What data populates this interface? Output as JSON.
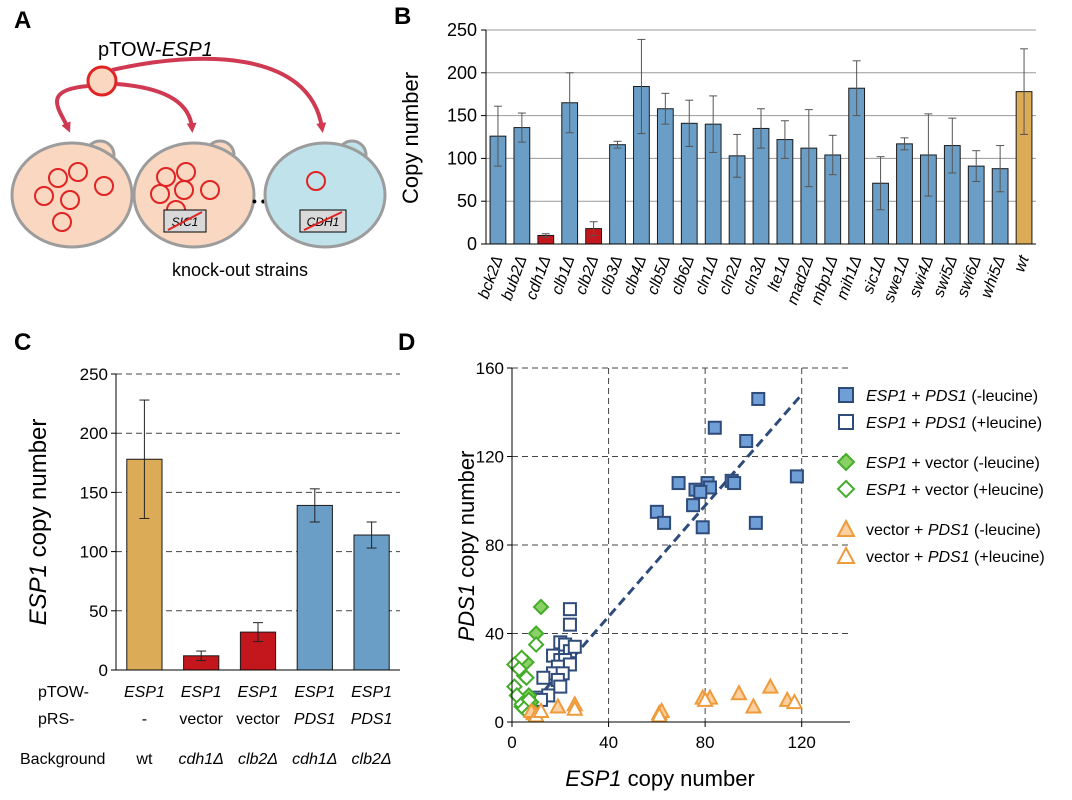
{
  "panels": {
    "A": "A",
    "B": "B",
    "C": "C",
    "D": "D"
  },
  "colors": {
    "blue_bar": "#6b9ec6",
    "red_bar": "#c4171d",
    "gold_bar": "#dbab57",
    "cell_fill": "#fad7c0",
    "cell_blue": "#c0e2ea",
    "circle_red": "#e02424",
    "arrow_red": "#cf3a52",
    "series_blue_dark": "#2e4b7a",
    "series_blue_fill": "#6f9fd6",
    "series_green": "#44ad29",
    "series_green_fill": "#8bd064",
    "series_orange": "#ef9a3b",
    "series_orange_fill": "#fbcf9e",
    "fit_line": "#2e4b7a"
  },
  "panel_a": {
    "plasmid_prefix": "pTOW-",
    "plasmid_gene": "ESP1",
    "sic_label": "SIC1",
    "cdh_label": "CDH1",
    "ellipsis": "• • •",
    "caption": "knock-out strains"
  },
  "chart_data": [
    {
      "id": "B",
      "type": "bar",
      "title": "",
      "xlabel": "",
      "ylabel": "Copy number",
      "ylim": [
        0,
        250
      ],
      "yticks": [
        0,
        50,
        100,
        150,
        200,
        250
      ],
      "grid": true,
      "categories": [
        "bck2Δ",
        "bub2Δ",
        "cdh1Δ",
        "clb1Δ",
        "clb2Δ",
        "clb3Δ",
        "clb4Δ",
        "clb5Δ",
        "clb6Δ",
        "cln1Δ",
        "cln2Δ",
        "cln3Δ",
        "lte1Δ",
        "mad2Δ",
        "mbp1Δ",
        "mih1Δ",
        "sic1Δ",
        "swe1Δ",
        "swi4Δ",
        "swi5Δ",
        "swi6Δ",
        "whi5Δ",
        "wt"
      ],
      "values": [
        126,
        136,
        10,
        165,
        18,
        116,
        184,
        158,
        141,
        140,
        103,
        135,
        122,
        112,
        104,
        182,
        71,
        117,
        104,
        115,
        91,
        88,
        178
      ],
      "error_bars": [
        35,
        17,
        2,
        35,
        8,
        4,
        55,
        18,
        27,
        33,
        25,
        23,
        22,
        45,
        23,
        32,
        31,
        7,
        48,
        32,
        18,
        27,
        50
      ],
      "bar_colors": [
        "blue",
        "blue",
        "red",
        "blue",
        "red",
        "blue",
        "blue",
        "blue",
        "blue",
        "blue",
        "blue",
        "blue",
        "blue",
        "blue",
        "blue",
        "blue",
        "blue",
        "blue",
        "blue",
        "blue",
        "blue",
        "blue",
        "gold"
      ]
    },
    {
      "id": "C",
      "type": "bar",
      "title": "",
      "ylabel_gene": "ESP1",
      "ylabel_suffix": " copy number",
      "ylim": [
        0,
        250
      ],
      "yticks": [
        0,
        50,
        100,
        150,
        200,
        250
      ],
      "grid": true,
      "values": [
        178,
        12,
        32,
        139,
        114
      ],
      "error_bars": [
        50,
        4,
        8,
        14,
        11
      ],
      "bar_colors": [
        "gold",
        "red",
        "red",
        "blue",
        "blue"
      ],
      "row_headers": [
        "pTOW-",
        "pRS-",
        "Background"
      ],
      "rows": [
        [
          "ESP1",
          "ESP1",
          "ESP1",
          "ESP1",
          "ESP1"
        ],
        [
          "-",
          "vector",
          "vector",
          "PDS1",
          "PDS1"
        ],
        [
          "wt",
          "cdh1Δ",
          "clb2Δ",
          "cdh1Δ",
          "clb2Δ"
        ]
      ]
    },
    {
      "id": "D",
      "type": "scatter",
      "title": "",
      "xlabel_gene": "ESP1",
      "xlabel_suffix": " copy number",
      "ylabel_gene": "PDS1",
      "ylabel_suffix": " copy number",
      "xlim": [
        0,
        140
      ],
      "ylim": [
        0,
        160
      ],
      "xticks": [
        0,
        40,
        80,
        120
      ],
      "yticks": [
        0,
        40,
        80,
        120,
        160
      ],
      "grid": true,
      "legend_position": "right",
      "fit_line": {
        "x": [
          10,
          120
        ],
        "y": [
          10,
          148
        ]
      },
      "series": [
        {
          "name_parts": [
            "ESP1",
            " + ",
            "PDS1",
            " (-leucine)"
          ],
          "marker": "square",
          "filled": true,
          "points": [
            [
              102,
              146
            ],
            [
              84,
              133
            ],
            [
              97,
              127
            ],
            [
              118,
              111
            ],
            [
              69,
              108
            ],
            [
              81,
              108
            ],
            [
              82,
              106
            ],
            [
              91,
              109
            ],
            [
              92,
              108
            ],
            [
              76,
              105
            ],
            [
              78,
              104
            ],
            [
              75,
              98
            ],
            [
              60,
              95
            ],
            [
              63,
              90
            ],
            [
              79,
              88
            ],
            [
              101,
              90
            ]
          ]
        },
        {
          "name_parts": [
            "ESP1",
            " + ",
            "PDS1",
            " (+leucine)"
          ],
          "marker": "square",
          "filled": false,
          "points": [
            [
              24,
              51
            ],
            [
              24,
              44
            ],
            [
              20,
              36
            ],
            [
              22,
              35
            ],
            [
              24,
              32
            ],
            [
              26,
              34
            ],
            [
              17,
              30
            ],
            [
              20,
              28
            ],
            [
              22,
              28
            ],
            [
              24,
              26
            ],
            [
              19,
              25
            ],
            [
              17,
              22
            ],
            [
              21,
              22
            ],
            [
              19,
              19
            ],
            [
              13,
              20
            ],
            [
              20,
              16
            ],
            [
              11,
              11
            ],
            [
              15,
              12
            ],
            [
              9,
              8
            ],
            [
              12,
              10
            ]
          ]
        },
        {
          "name_parts": [
            "ESP1",
            " + vector (-leucine)"
          ],
          "marker": "diamond",
          "filled": true,
          "points": [
            [
              12,
              52
            ],
            [
              10,
              40
            ],
            [
              6,
              27
            ],
            [
              5,
              21
            ],
            [
              7,
              12
            ],
            [
              8,
              9
            ],
            [
              4,
              7
            ]
          ]
        },
        {
          "name_parts": [
            "ESP1",
            " + vector (+leucine)"
          ],
          "marker": "diamond",
          "filled": false,
          "points": [
            [
              10,
              35
            ],
            [
              4,
              29
            ],
            [
              1,
              26
            ],
            [
              3,
              24
            ],
            [
              1,
              16
            ],
            [
              6,
              20
            ],
            [
              2,
              12
            ],
            [
              4,
              8
            ],
            [
              7,
              10
            ],
            [
              5,
              6
            ],
            [
              9,
              5
            ],
            [
              7,
              4
            ]
          ]
        },
        {
          "name_parts": [
            "vector + ",
            "PDS1",
            " (-leucine)"
          ],
          "marker": "triangle",
          "filled": true,
          "points": [
            [
              9,
              4
            ],
            [
              8,
              5
            ],
            [
              19,
              7
            ],
            [
              26,
              8
            ],
            [
              61,
              4
            ],
            [
              62,
              5
            ],
            [
              79,
              11
            ],
            [
              82,
              11
            ],
            [
              94,
              13
            ],
            [
              100,
              7
            ],
            [
              107,
              16
            ],
            [
              114,
              10
            ]
          ]
        },
        {
          "name_parts": [
            "vector + ",
            "PDS1",
            " (+leucine)"
          ],
          "marker": "triangle",
          "filled": false,
          "points": [
            [
              10,
              3
            ],
            [
              12,
              5
            ],
            [
              26,
              6
            ],
            [
              61,
              3
            ],
            [
              80,
              10
            ],
            [
              117,
              9
            ]
          ]
        }
      ]
    }
  ]
}
